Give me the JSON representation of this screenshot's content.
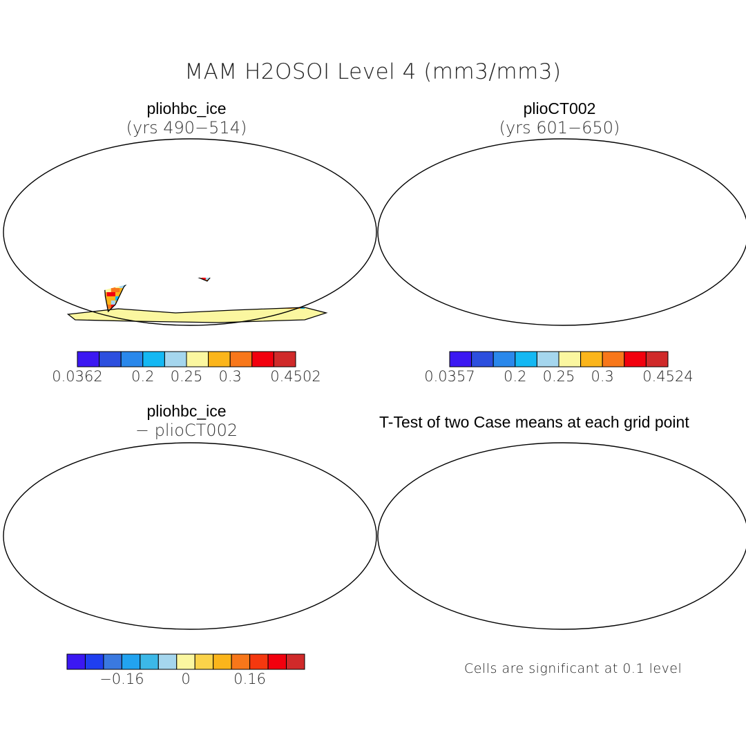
{
  "title": "MAM H2OSOI Level 4 (mm3/mm3)",
  "panels": {
    "top_left": {
      "case": "pliohbc_ice",
      "subtitle": "(yrs 490−514)"
    },
    "top_right": {
      "case": "plioCT002",
      "subtitle": "(yrs 601−650)"
    },
    "bottom_left": {
      "case": "pliohbc_ice",
      "subtitle": "− plioCT002"
    },
    "bottom_right": {
      "title": "T-Test of two Case means at each grid point",
      "note": "Cells are significant at 0.1 level"
    }
  },
  "colorbars": {
    "top_left": {
      "colors": [
        "#3b18f2",
        "#2c4fde",
        "#2a88eb",
        "#14b8f3",
        "#a5d6ee",
        "#fbf7a0",
        "#fbb51b",
        "#f8771a",
        "#f2000e",
        "#d02a2a"
      ],
      "ticks": [
        {
          "label": "0.0362",
          "pos": 0
        },
        {
          "label": "0.2",
          "pos": 3
        },
        {
          "label": "0.25",
          "pos": 5
        },
        {
          "label": "0.3",
          "pos": 7
        },
        {
          "label": "0.4502",
          "pos": 10
        }
      ]
    },
    "top_right": {
      "colors": [
        "#3b18f2",
        "#2c4fde",
        "#2a88eb",
        "#14b8f3",
        "#a5d6ee",
        "#fbf7a0",
        "#fbb51b",
        "#f8771a",
        "#f2000e",
        "#d02a2a"
      ],
      "ticks": [
        {
          "label": "0.0357",
          "pos": 0
        },
        {
          "label": "0.2",
          "pos": 3
        },
        {
          "label": "0.25",
          "pos": 5
        },
        {
          "label": "0.3",
          "pos": 7
        },
        {
          "label": "0.4524",
          "pos": 10
        }
      ]
    },
    "bottom_left": {
      "colors": [
        "#3b18f2",
        "#1f3ff0",
        "#3a79e0",
        "#22a3f0",
        "#3cb8e8",
        "#a5d6ee",
        "#fbf7a0",
        "#fbd34a",
        "#fbb51b",
        "#f8771a",
        "#f5380f",
        "#f2000e",
        "#d02a2a"
      ],
      "ticks": [
        {
          "label": "−0.16",
          "pos": 3
        },
        {
          "label": "0",
          "pos": 6.5
        },
        {
          "label": "0.16",
          "pos": 10
        }
      ]
    }
  },
  "map_colors": {
    "ocean": "#ffffff",
    "outline": "#000000",
    "significance": "#ff0000"
  }
}
